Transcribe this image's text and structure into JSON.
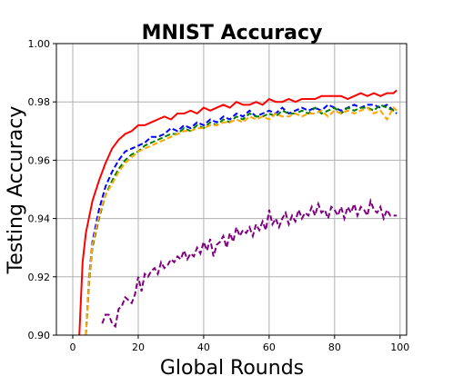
{
  "chart_data": {
    "type": "line",
    "title": "MNIST Accuracy",
    "xlabel": "Global Rounds",
    "ylabel": "Testing Accuracy",
    "xlim": [
      -5,
      102
    ],
    "ylim": [
      0.9,
      1.0
    ],
    "xticks": [
      0,
      20,
      40,
      60,
      80,
      100
    ],
    "xtick_labels": [
      "0",
      "20",
      "40",
      "60",
      "80",
      "100"
    ],
    "yticks": [
      0.9,
      0.92,
      0.94,
      0.96,
      0.98,
      1.0
    ],
    "ytick_labels": [
      "0.90",
      "0.92",
      "0.94",
      "0.96",
      "0.98",
      "1.00"
    ],
    "grid": true,
    "legend": "none",
    "series": [
      {
        "color": "#ff0000",
        "dash": "solid",
        "x": [
          2,
          3,
          4,
          6,
          8,
          10,
          12,
          14,
          16,
          18,
          20,
          22,
          24,
          26,
          28,
          30,
          32,
          34,
          36,
          38,
          40,
          42,
          44,
          46,
          48,
          50,
          52,
          54,
          56,
          58,
          60,
          62,
          64,
          66,
          68,
          70,
          72,
          74,
          76,
          78,
          80,
          82,
          84,
          86,
          88,
          90,
          92,
          94,
          96,
          98,
          99
        ],
        "y": [
          0.9,
          0.925,
          0.935,
          0.946,
          0.953,
          0.959,
          0.964,
          0.967,
          0.969,
          0.97,
          0.972,
          0.972,
          0.973,
          0.974,
          0.975,
          0.974,
          0.976,
          0.976,
          0.977,
          0.976,
          0.978,
          0.977,
          0.978,
          0.979,
          0.978,
          0.98,
          0.979,
          0.979,
          0.98,
          0.979,
          0.981,
          0.98,
          0.98,
          0.981,
          0.98,
          0.981,
          0.981,
          0.981,
          0.982,
          0.982,
          0.982,
          0.982,
          0.981,
          0.982,
          0.983,
          0.982,
          0.983,
          0.982,
          0.983,
          0.983,
          0.984
        ]
      },
      {
        "color": "#0000ff",
        "dash": "dashed",
        "x": [
          4,
          5,
          6,
          8,
          10,
          12,
          14,
          16,
          18,
          20,
          22,
          24,
          26,
          28,
          30,
          32,
          34,
          36,
          38,
          40,
          42,
          44,
          46,
          48,
          50,
          52,
          54,
          56,
          58,
          60,
          62,
          64,
          66,
          68,
          70,
          72,
          74,
          76,
          78,
          80,
          82,
          84,
          86,
          88,
          90,
          92,
          94,
          96,
          98,
          99
        ],
        "y": [
          0.9,
          0.92,
          0.932,
          0.943,
          0.951,
          0.956,
          0.96,
          0.963,
          0.964,
          0.965,
          0.966,
          0.968,
          0.968,
          0.969,
          0.971,
          0.97,
          0.972,
          0.971,
          0.973,
          0.972,
          0.974,
          0.973,
          0.975,
          0.974,
          0.976,
          0.975,
          0.977,
          0.975,
          0.976,
          0.977,
          0.976,
          0.978,
          0.976,
          0.977,
          0.978,
          0.977,
          0.978,
          0.977,
          0.979,
          0.978,
          0.977,
          0.978,
          0.979,
          0.978,
          0.979,
          0.979,
          0.978,
          0.979,
          0.977,
          0.976
        ]
      },
      {
        "color": "#008000",
        "dash": "dashed",
        "x": [
          4,
          5,
          6,
          8,
          10,
          12,
          14,
          16,
          18,
          20,
          22,
          24,
          26,
          28,
          30,
          32,
          34,
          36,
          38,
          40,
          42,
          44,
          46,
          48,
          50,
          52,
          54,
          56,
          58,
          60,
          62,
          64,
          66,
          68,
          70,
          72,
          74,
          76,
          78,
          80,
          82,
          84,
          86,
          88,
          90,
          92,
          94,
          96,
          98,
          99
        ],
        "y": [
          0.9,
          0.918,
          0.93,
          0.94,
          0.948,
          0.953,
          0.957,
          0.96,
          0.962,
          0.963,
          0.965,
          0.966,
          0.967,
          0.968,
          0.969,
          0.969,
          0.971,
          0.97,
          0.972,
          0.971,
          0.973,
          0.972,
          0.974,
          0.973,
          0.975,
          0.974,
          0.976,
          0.975,
          0.975,
          0.976,
          0.975,
          0.977,
          0.976,
          0.976,
          0.977,
          0.976,
          0.978,
          0.976,
          0.977,
          0.978,
          0.976,
          0.978,
          0.977,
          0.978,
          0.978,
          0.977,
          0.979,
          0.978,
          0.977,
          0.977
        ]
      },
      {
        "color": "#ffa500",
        "dash": "dashed",
        "x": [
          4,
          5,
          6,
          8,
          10,
          12,
          14,
          16,
          18,
          20,
          22,
          24,
          26,
          28,
          30,
          32,
          34,
          36,
          38,
          40,
          42,
          44,
          46,
          48,
          50,
          52,
          54,
          56,
          58,
          60,
          62,
          64,
          66,
          68,
          70,
          72,
          74,
          76,
          78,
          80,
          82,
          84,
          86,
          88,
          90,
          92,
          94,
          96,
          98,
          99
        ],
        "y": [
          0.9,
          0.919,
          0.931,
          0.941,
          0.948,
          0.952,
          0.956,
          0.959,
          0.961,
          0.963,
          0.964,
          0.965,
          0.966,
          0.967,
          0.968,
          0.969,
          0.97,
          0.97,
          0.971,
          0.971,
          0.972,
          0.972,
          0.973,
          0.973,
          0.974,
          0.973,
          0.975,
          0.974,
          0.975,
          0.974,
          0.976,
          0.975,
          0.975,
          0.976,
          0.975,
          0.976,
          0.976,
          0.977,
          0.975,
          0.977,
          0.976,
          0.977,
          0.976,
          0.977,
          0.978,
          0.976,
          0.977,
          0.974,
          0.978,
          0.977
        ]
      },
      {
        "color": "#800080",
        "dash": "dashed",
        "x": [
          9,
          10,
          11,
          12,
          13,
          14,
          15,
          16,
          17,
          18,
          19,
          20,
          21,
          22,
          23,
          24,
          25,
          26,
          27,
          28,
          29,
          30,
          31,
          32,
          33,
          34,
          35,
          36,
          37,
          38,
          39,
          40,
          41,
          42,
          43,
          44,
          45,
          46,
          47,
          48,
          49,
          50,
          51,
          52,
          53,
          54,
          55,
          56,
          57,
          58,
          59,
          60,
          61,
          62,
          63,
          64,
          65,
          66,
          67,
          68,
          69,
          70,
          71,
          72,
          73,
          74,
          75,
          76,
          77,
          78,
          79,
          80,
          81,
          82,
          83,
          84,
          85,
          86,
          87,
          88,
          89,
          90,
          91,
          92,
          93,
          94,
          95,
          96,
          97,
          98,
          99
        ],
        "y": [
          0.904,
          0.907,
          0.907,
          0.904,
          0.903,
          0.909,
          0.91,
          0.913,
          0.912,
          0.911,
          0.914,
          0.92,
          0.915,
          0.921,
          0.92,
          0.922,
          0.923,
          0.921,
          0.925,
          0.923,
          0.924,
          0.926,
          0.925,
          0.927,
          0.926,
          0.929,
          0.926,
          0.928,
          0.927,
          0.93,
          0.928,
          0.932,
          0.929,
          0.933,
          0.927,
          0.931,
          0.932,
          0.934,
          0.93,
          0.935,
          0.932,
          0.937,
          0.934,
          0.936,
          0.935,
          0.937,
          0.934,
          0.938,
          0.936,
          0.939,
          0.936,
          0.943,
          0.938,
          0.94,
          0.937,
          0.94,
          0.942,
          0.938,
          0.941,
          0.939,
          0.943,
          0.94,
          0.942,
          0.941,
          0.944,
          0.941,
          0.945,
          0.942,
          0.943,
          0.94,
          0.944,
          0.943,
          0.941,
          0.944,
          0.94,
          0.944,
          0.942,
          0.945,
          0.941,
          0.944,
          0.943,
          0.941,
          0.946,
          0.943,
          0.942,
          0.944,
          0.94,
          0.943,
          0.941,
          0.941,
          0.941
        ]
      }
    ]
  }
}
